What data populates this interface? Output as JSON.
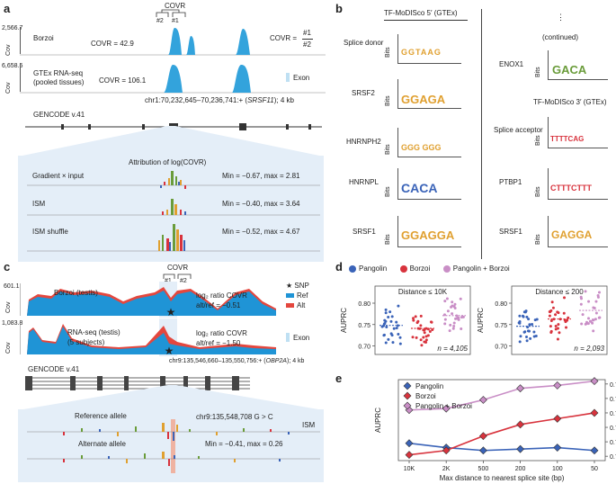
{
  "panel_a": {
    "letter": "a",
    "covr_label": "COVR",
    "peak1": "#1",
    "peak2": "#2",
    "borzoi_ytick": "2,566.7",
    "borzoi_name": "Borzoi",
    "borzoi_covr": "COVR = 42.9",
    "covr_ratio_prefix": "COVR =",
    "covr_ratio_num": "#1",
    "covr_ratio_den": "#2",
    "gtex_ytick": "6,658.5",
    "gtex_name_line1": "GTEx RNA-seq",
    "gtex_name_line2": "(pooled tissues)",
    "gtex_covr": "COVR = 106.1",
    "exon_label": "Exon",
    "cov_label": "Cov",
    "locus_prefix": "chr1:70,232,645–70,236,741:+ (",
    "locus_gene": "SRSF11",
    "locus_suffix": "); 4 kb",
    "gencode": "GENCODE v.41",
    "attribution_title": "Attribution of log(COVR)",
    "tracks": [
      {
        "name": "Gradient × input",
        "range": "Min = −0.67, max = 2.81"
      },
      {
        "name": "ISM",
        "range": "Min = −0.40, max = 3.64"
      },
      {
        "name": "ISM shuffle",
        "range": "Min = −0.52, max = 4.67"
      }
    ]
  },
  "panel_b": {
    "letter": "b",
    "header_5p": "TF-MoDISco 5′ (GTEx)",
    "header_3p": "TF-MoDISco 3′ (GTEx)",
    "continued_dots": "⋮",
    "continued": "(continued)",
    "bits": "Bits",
    "left_motifs": [
      {
        "label": "Splice donor",
        "letters": "GGTAAG"
      },
      {
        "label": "SRSF2",
        "letters": "GGAGA"
      },
      {
        "label": "HNRNPH2",
        "letters": "GGG GGG"
      },
      {
        "label": "HNRNPL",
        "letters": "CACA"
      },
      {
        "label": "SRSF1",
        "letters": "GGAGGA"
      }
    ],
    "right_motifs": [
      {
        "label": "ENOX1",
        "letters": "GACA"
      },
      {
        "label": "Splice acceptor",
        "letters": "TTTTCAG"
      },
      {
        "label": "PTBP1",
        "letters": "CTTTCTTT"
      },
      {
        "label": "SRSF1",
        "letters": "GAGGA"
      }
    ]
  },
  "panel_c": {
    "letter": "c",
    "covr_label": "COVR",
    "peak1": "#1",
    "peak2": "#2",
    "borzoi_ytick": "601.1",
    "borzoi_name": "Borzoi (testis)",
    "log2_line1": "log₂ ratio COVR",
    "log2_line2_borzoi": "alt/ref = −0.51",
    "rna_ytick": "1,083.8",
    "rna_name_line1": "RNA-seq (testis)",
    "rna_name_line2": "(5 subjects)",
    "log2_line2_rna": "alt/ref = −1.50",
    "legend_snp": "SNP",
    "legend_ref": "Ref",
    "legend_alt": "Alt",
    "exon_label": "Exon",
    "cov_label": "Cov",
    "locus_prefix": "chr9:135,546,660–135,550,756:+ (",
    "locus_gene": "OBP2A",
    "locus_suffix": "); 4 kb",
    "gencode": "GENCODE v.41",
    "ref_allele": "Reference allele",
    "variant": "chr9:135,548,708 G > C",
    "ism": "ISM",
    "alt_allele": "Alternate allele",
    "range": "Min = −0.41, max = 0.26"
  },
  "panel_d": {
    "letter": "d",
    "legend": [
      "Pangolin",
      "Borzoi",
      "Pangolin + Borzoi"
    ],
    "colors": {
      "pangolin": "#3a63b8",
      "borzoi": "#d8333d",
      "both": "#c98ec6"
    }
  },
  "panel_e": {
    "letter": "e",
    "legend": [
      "Pangolin",
      "Borzoi",
      "Pangolin + Borzoi"
    ]
  },
  "chart_data": [
    {
      "type": "scatter",
      "title": "Distance ≤ 10K",
      "ylabel": "AUPRC",
      "ylim": [
        0.68,
        0.84
      ],
      "yticks": [
        "0.70",
        "0.75",
        "0.80"
      ],
      "n_label": "n = 4,105",
      "series": [
        {
          "name": "Pangolin",
          "median": 0.748,
          "min": 0.705,
          "max": 0.805
        },
        {
          "name": "Borzoi",
          "median": 0.741,
          "min": 0.695,
          "max": 0.785
        },
        {
          "name": "Pangolin + Borzoi",
          "median": 0.771,
          "min": 0.73,
          "max": 0.825
        }
      ]
    },
    {
      "type": "scatter",
      "title": "Distance ≤ 200",
      "ylabel": "AUPRC",
      "ylim": [
        0.68,
        0.84
      ],
      "yticks": [
        "0.70",
        "0.75",
        "0.80"
      ],
      "n_label": "n = 2,093",
      "series": [
        {
          "name": "Pangolin",
          "median": 0.746,
          "min": 0.702,
          "max": 0.79
        },
        {
          "name": "Borzoi",
          "median": 0.763,
          "min": 0.712,
          "max": 0.82
        },
        {
          "name": "Pangolin + Borzoi",
          "median": 0.783,
          "min": 0.735,
          "max": 0.835
        }
      ]
    },
    {
      "type": "line",
      "xlabel": "Max distance to nearest splice site (bp)",
      "ylabel": "AUPRC",
      "categories": [
        "10K",
        "2K",
        "500",
        "200",
        "100",
        "50"
      ],
      "ylim": [
        0.737,
        0.793
      ],
      "yticks": [
        "0.74",
        "0.75",
        "0.76",
        "0.77",
        "0.78",
        "0.79"
      ],
      "series": [
        {
          "name": "Pangolin",
          "values": [
            0.749,
            0.746,
            0.744,
            0.745,
            0.746,
            0.744
          ]
        },
        {
          "name": "Borzoi",
          "values": [
            0.741,
            0.744,
            0.754,
            0.762,
            0.766,
            0.77
          ]
        },
        {
          "name": "Pangolin + Borzoi",
          "values": [
            0.772,
            0.773,
            0.779,
            0.787,
            0.789,
            0.792
          ]
        }
      ]
    }
  ]
}
